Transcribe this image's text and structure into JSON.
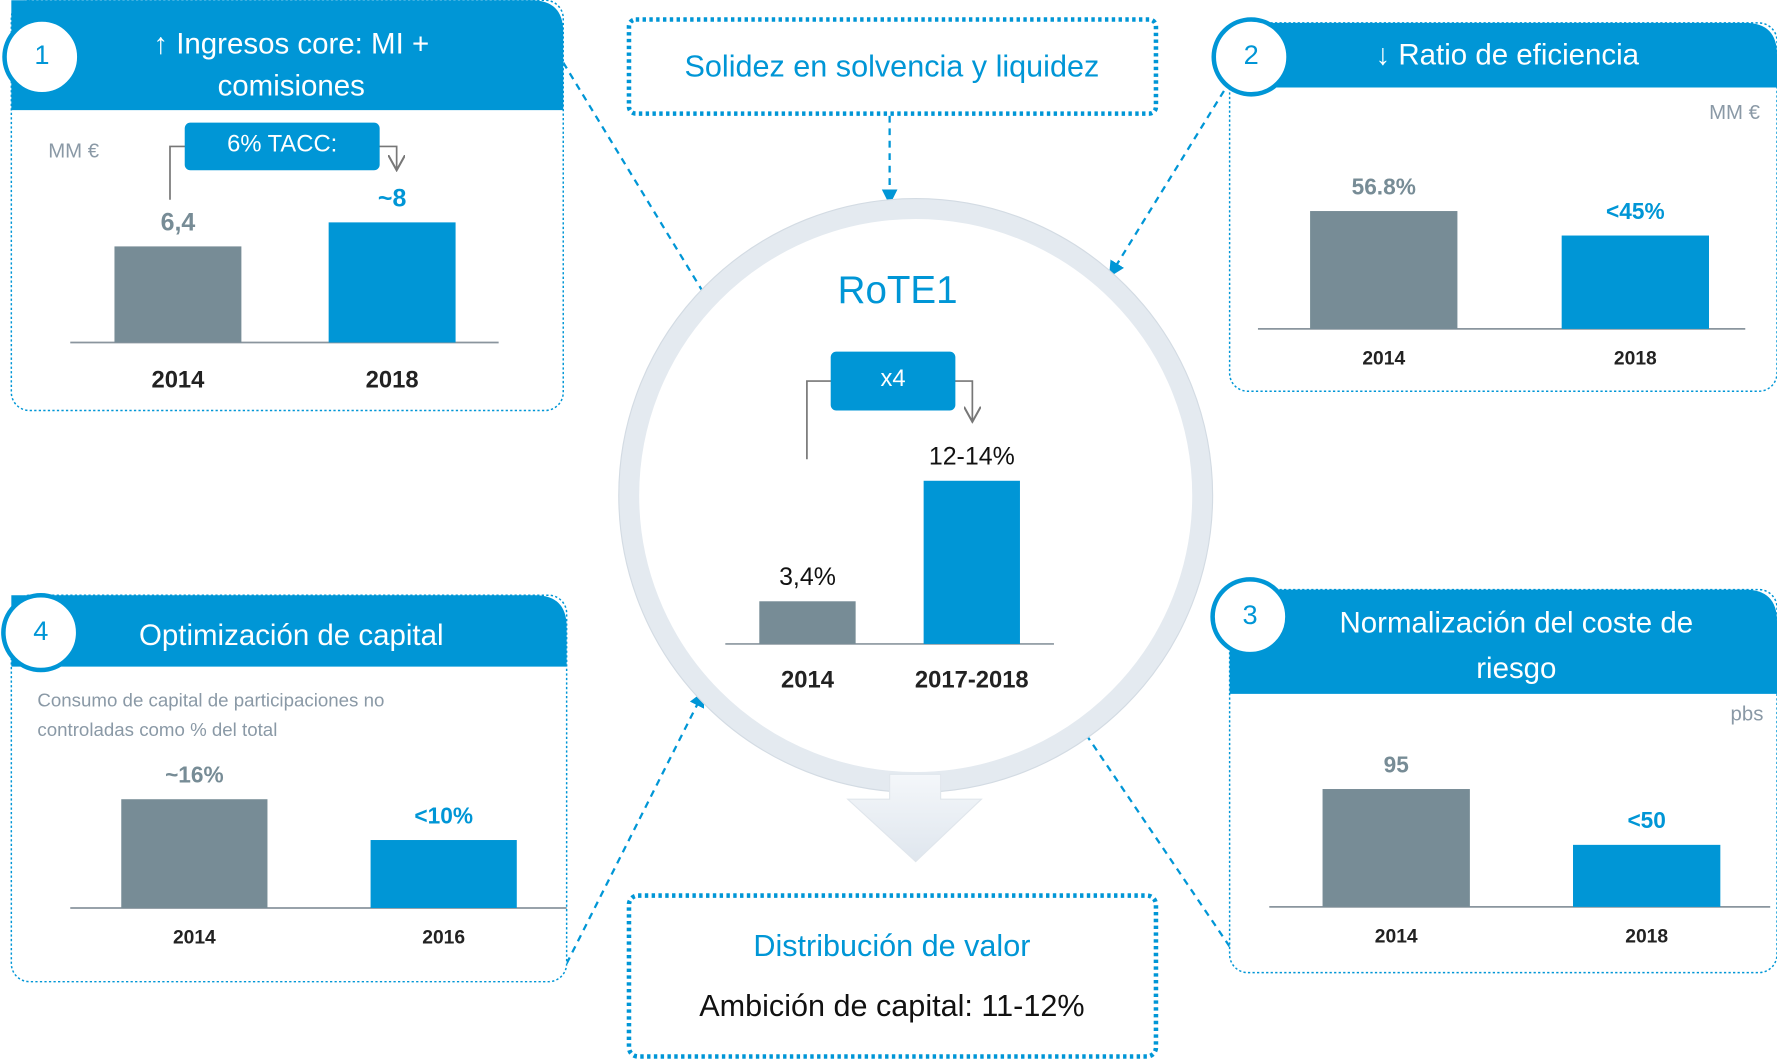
{
  "top_box": "Solidez en solvencia y liquidez",
  "bottom_box": {
    "title": "Distribución de valor",
    "text": "Ambición de capital: 11-12%"
  },
  "chart_data": [
    {
      "type": "bar",
      "title": [
        "RoTE1"
      ],
      "annotation": "x4",
      "categories": [
        "2014",
        "2017-2018"
      ],
      "values": [
        3.4,
        13
      ],
      "value_labels": [
        "3,4%",
        "12-14%"
      ],
      "colors": [
        "#778c96",
        "#0096d6"
      ]
    },
    {
      "type": "bar",
      "number": "1",
      "title": [
        "↑ Ingresos core: MI +",
        "comisiones"
      ],
      "unit": "MM €",
      "annotation": "6% TACC:",
      "categories": [
        "2014",
        "2018"
      ],
      "values": [
        6.4,
        8
      ],
      "value_labels": [
        "6,4",
        "~8"
      ],
      "colors": [
        "#778c96",
        "#0096d6"
      ]
    },
    {
      "type": "bar",
      "number": "2",
      "title": [
        "↓ Ratio de eficiencia"
      ],
      "unit": "MM €",
      "categories": [
        "2014",
        "2018"
      ],
      "values": [
        56.8,
        45
      ],
      "value_labels": [
        "56.8%",
        "<45%"
      ],
      "colors": [
        "#778c96",
        "#0096d6"
      ]
    },
    {
      "type": "bar",
      "number": "3",
      "title": [
        "Normalización del coste de",
        "riesgo"
      ],
      "unit": "pbs",
      "categories": [
        "2014",
        "2018"
      ],
      "values": [
        95,
        50
      ],
      "value_labels": [
        "95",
        "<50"
      ],
      "colors": [
        "#778c96",
        "#0096d6"
      ]
    },
    {
      "type": "bar",
      "number": "4",
      "title": [
        "Optimización de capital"
      ],
      "subtitle": [
        "Consumo de capital de participaciones no",
        "controladas como % del total"
      ],
      "categories": [
        "2014",
        "2016"
      ],
      "values": [
        16,
        10
      ],
      "value_labels": [
        "~16%",
        "<10%"
      ],
      "colors": [
        "#778c96",
        "#0096d6"
      ]
    }
  ]
}
